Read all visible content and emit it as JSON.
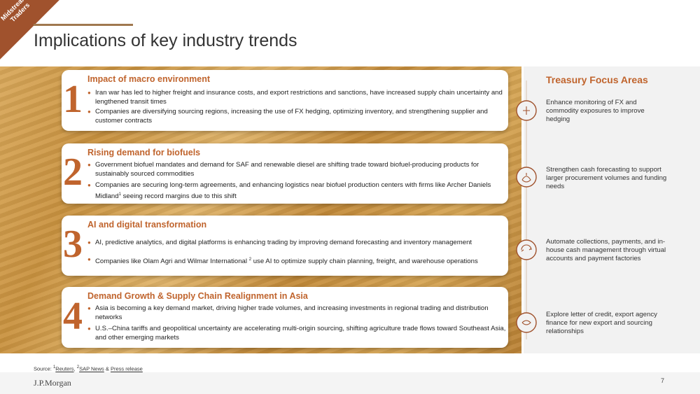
{
  "corner_tag": "Midstream: Traders",
  "title": "Implications of key industry trends",
  "cards": [
    {
      "number": "1",
      "heading": "Impact of macro environment",
      "bullets": [
        [
          {
            "text": "Iran war has led to higher freight and insurance costs, and export restrictions and sanctions, have increased supply chain uncertainty and lengthened transit times"
          }
        ],
        [
          {
            "text": "Companies are diversifying sourcing regions, increasing the use of FX hedging, optimizing inventory, and strengthening supplier and customer contracts"
          }
        ]
      ]
    },
    {
      "number": "2",
      "heading": "Rising demand for biofuels",
      "bullets": [
        [
          {
            "text": "Government biofuel mandates and demand for SAF and renewable diesel are shifting trade toward biofuel-producing products for sustainably sourced commodities"
          }
        ],
        [
          {
            "text": "Companies are securing long-term agreements, and enhancing logistics near biofuel production centers with firms  like Archer Daniels Midland"
          },
          {
            "sup": "1"
          },
          {
            "text": " seeing record margins due to this shift"
          }
        ]
      ]
    },
    {
      "number": "3",
      "heading": "AI and digital transformation",
      "bullets": [
        [
          {
            "text": "AI, predictive analytics, and digital platforms is enhancing trading by improving demand forecasting and inventory management"
          }
        ],
        [
          {
            "text": "Companies like Olam Agri and Wilmar International "
          },
          {
            "sup": "2"
          },
          {
            "text": " use AI to optimize supply chain planning, freight, and warehouse operations"
          }
        ]
      ]
    },
    {
      "number": "4",
      "heading": "Demand Growth & Supply Chain Realignment in Asia",
      "bullets": [
        [
          {
            "text": "Asia is becoming a key demand market, driving higher trade volumes, and increasing investments in regional trading and distribution networks"
          }
        ],
        [
          {
            "text": "U.S.–China tariffs and geopolitical uncertainty are accelerating multi-origin sourcing, shifting agriculture trade flows toward Southeast Asia, and other emerging markets"
          }
        ]
      ]
    }
  ],
  "panel": {
    "title": "Treasury Focus Areas",
    "items": [
      "Enhance monitoring of FX and commodity exposures to improve hedging",
      "Strengthen cash forecasting to support larger procurement volumes and funding needs",
      "Automate collections, payments, and in-house cash management through virtual accounts and payment factories",
      "Explore letter of credit, export agency finance for new export and sourcing relationships"
    ]
  },
  "source": {
    "label": "Source: ",
    "refs": [
      {
        "sup": "1",
        "link": "Reuters",
        "after": ", "
      },
      {
        "sup": "2",
        "link": "SAP News",
        "after": " & "
      }
    ],
    "last_link": "Press release"
  },
  "footer": {
    "logo": "J.P.Morgan",
    "page": "7"
  }
}
